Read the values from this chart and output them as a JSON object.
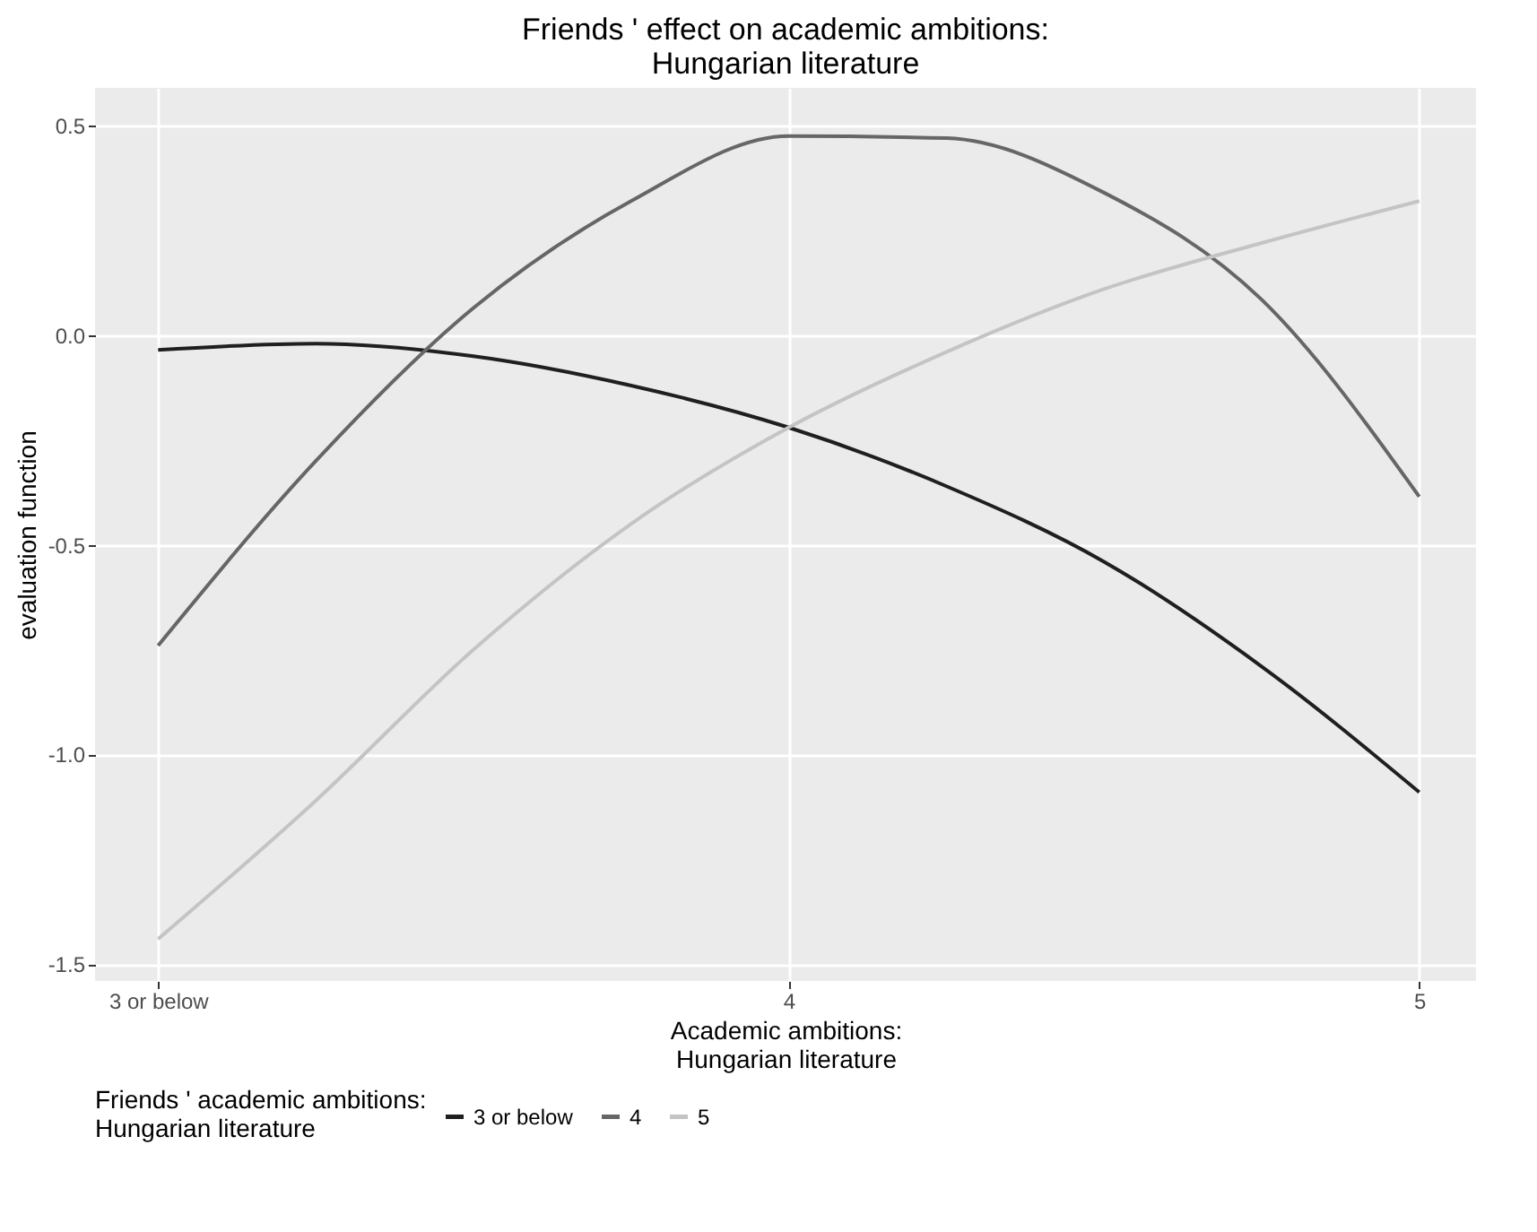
{
  "chart_data": {
    "type": "line",
    "title": "Friends ' effect on academic ambitions:\nHungarian literature",
    "xlabel": "Academic ambitions:\nHungarian literature",
    "ylabel": "evaluation function",
    "legend_title": "Friends '  academic ambitions:\nHungarian literature",
    "x": [
      3,
      3.25,
      3.5,
      3.75,
      4,
      4.25,
      4.5,
      4.75,
      5
    ],
    "series": [
      {
        "name": "3 or below",
        "color": "#1f1f1f",
        "values": [
          -0.035,
          -0.02,
          -0.05,
          -0.12,
          -0.22,
          -0.36,
          -0.54,
          -0.79,
          -1.09
        ]
      },
      {
        "name": "4",
        "color": "#666666",
        "values": [
          -0.74,
          -0.3,
          0.065,
          0.32,
          0.475,
          0.47,
          0.34,
          0.085,
          -0.385
        ]
      },
      {
        "name": "5",
        "color": "#c4c4c4",
        "values": [
          -1.44,
          -1.11,
          -0.75,
          -0.45,
          -0.22,
          -0.04,
          0.11,
          0.22,
          0.32
        ]
      }
    ],
    "xlim": [
      2.9,
      5.09
    ],
    "ylim": [
      -1.54,
      0.59
    ],
    "xticks": [
      {
        "value": 3,
        "label": "3 or below"
      },
      4,
      5
    ],
    "yticks": [
      {
        "value": -1.5,
        "label": "-1.5"
      },
      {
        "value": -1,
        "label": "-1.0"
      },
      {
        "value": -0.5,
        "label": "-0.5"
      },
      {
        "value": 0,
        "label": "0.0"
      },
      {
        "value": 0.5,
        "label": "0.5"
      }
    ],
    "grid": true,
    "legend": "bottom",
    "line_style": "solid"
  }
}
